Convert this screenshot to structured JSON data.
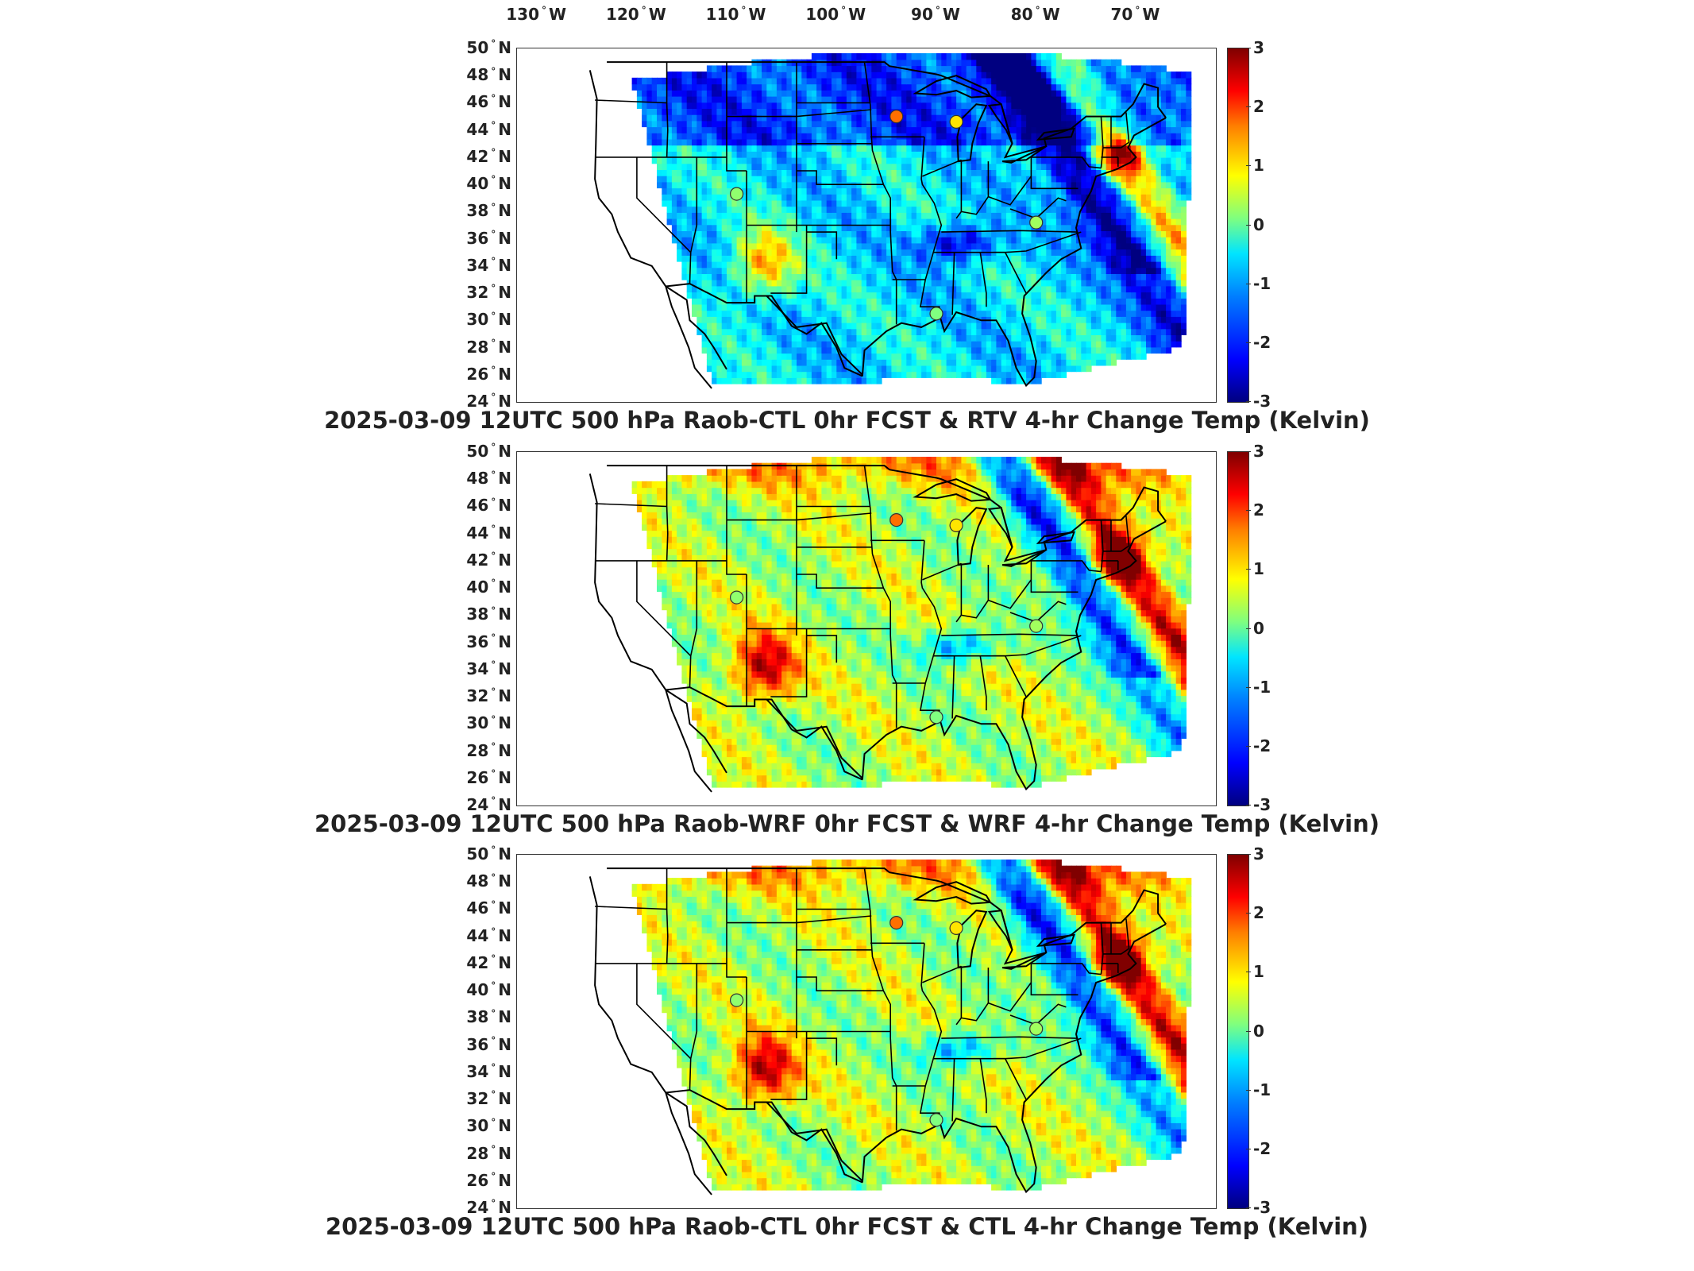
{
  "longitude_labels": [
    {
      "deg": "130",
      "hemi": "W"
    },
    {
      "deg": "120",
      "hemi": "W"
    },
    {
      "deg": "110",
      "hemi": "W"
    },
    {
      "deg": "100",
      "hemi": "W"
    },
    {
      "deg": "90",
      "hemi": "W"
    },
    {
      "deg": "80",
      "hemi": "W"
    },
    {
      "deg": "70",
      "hemi": "W"
    }
  ],
  "latitude_labels": [
    {
      "deg": "50",
      "hemi": "N"
    },
    {
      "deg": "48",
      "hemi": "N"
    },
    {
      "deg": "46",
      "hemi": "N"
    },
    {
      "deg": "44",
      "hemi": "N"
    },
    {
      "deg": "42",
      "hemi": "N"
    },
    {
      "deg": "40",
      "hemi": "N"
    },
    {
      "deg": "38",
      "hemi": "N"
    },
    {
      "deg": "36",
      "hemi": "N"
    },
    {
      "deg": "34",
      "hemi": "N"
    },
    {
      "deg": "32",
      "hemi": "N"
    },
    {
      "deg": "30",
      "hemi": "N"
    },
    {
      "deg": "28",
      "hemi": "N"
    },
    {
      "deg": "26",
      "hemi": "N"
    },
    {
      "deg": "24",
      "hemi": "N"
    }
  ],
  "colorbar": {
    "ticks": [
      "3",
      "2",
      "1",
      "0",
      "-1",
      "-2",
      "-3"
    ],
    "range": [
      -3,
      3
    ],
    "colormap": "jet"
  },
  "panels": [
    {
      "title": "2025-03-09 12UTC 500 hPa Raob-CTL 0hr FCST & RTV 4-hr Change Temp (Kelvin)",
      "field_tint": "cold"
    },
    {
      "title": "2025-03-09 12UTC 500 hPa Raob-WRF 0hr FCST & WRF 4-hr Change Temp (Kelvin)",
      "field_tint": "mixed"
    },
    {
      "title": "2025-03-09 12UTC 500 hPa Raob-CTL 0hr FCST & CTL 4-hr Change Temp (Kelvin)",
      "field_tint": "mixed"
    }
  ],
  "raob_stations": [
    {
      "lon": -94.0,
      "lat": 45.0,
      "value": 1.6
    },
    {
      "lon": -88.0,
      "lat": 44.6,
      "value": 0.9
    },
    {
      "lon": -110.0,
      "lat": 39.3,
      "value": 0.1
    },
    {
      "lon": -80.0,
      "lat": 37.2,
      "value": 0.2
    },
    {
      "lon": -90.0,
      "lat": 30.5,
      "value": 0.0
    }
  ],
  "colors": {
    "frame": "#333333",
    "border": "#000000"
  }
}
